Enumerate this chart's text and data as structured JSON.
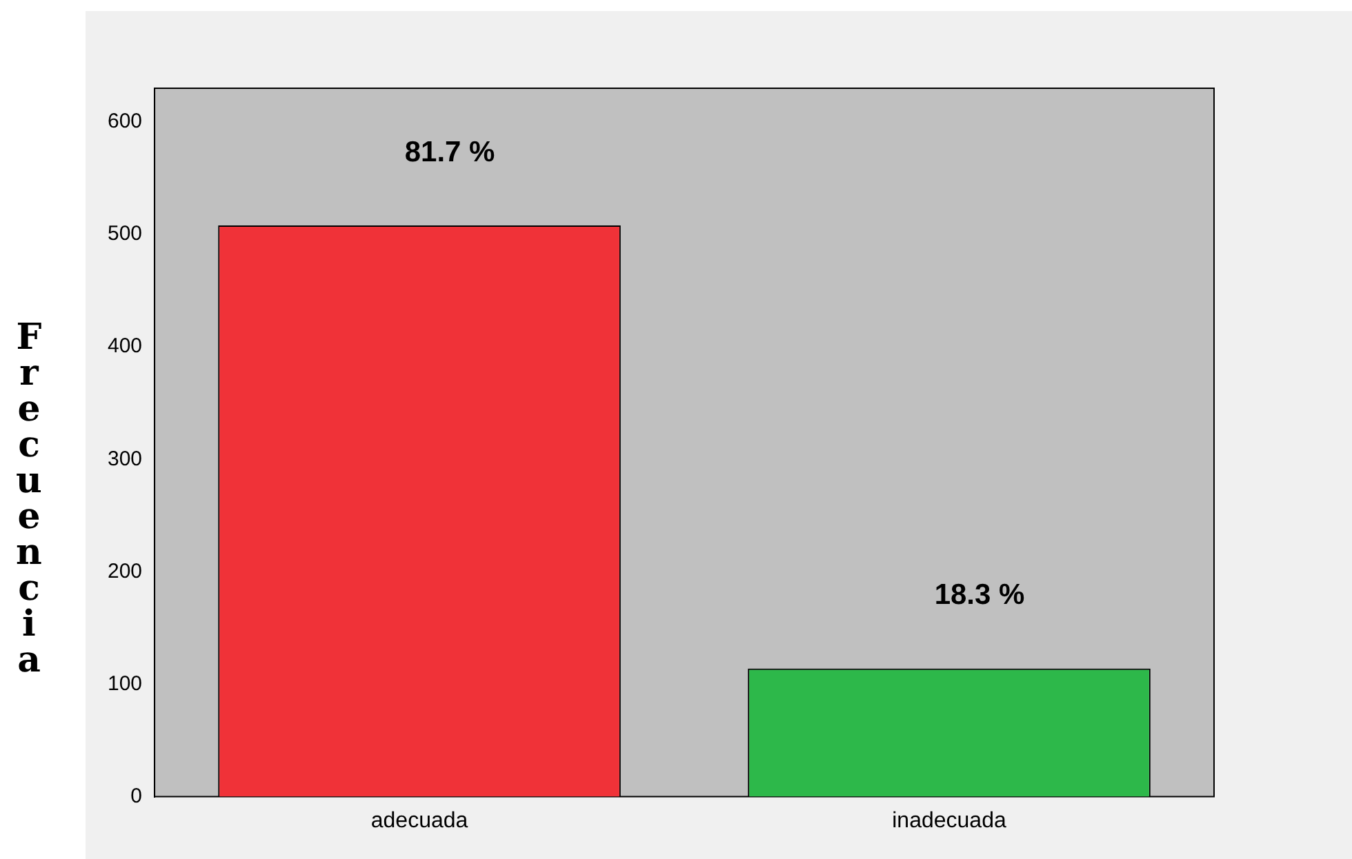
{
  "chart_data": {
    "type": "bar",
    "ylabel": "Frecuencia",
    "categories": [
      "adecuada",
      "inadecuada"
    ],
    "values": [
      508,
      114
    ],
    "colors": [
      "#f03238",
      "#2db84a"
    ],
    "annotations": [
      {
        "text": "81.7 %",
        "x": "adecuada",
        "y": 508
      },
      {
        "text": "18.3 %",
        "x": "inadecuada",
        "y": 114
      }
    ],
    "ylim": [
      0,
      630
    ],
    "yticks": [
      0,
      100,
      200,
      300,
      400,
      500,
      600
    ],
    "grid": false,
    "legend": false
  }
}
